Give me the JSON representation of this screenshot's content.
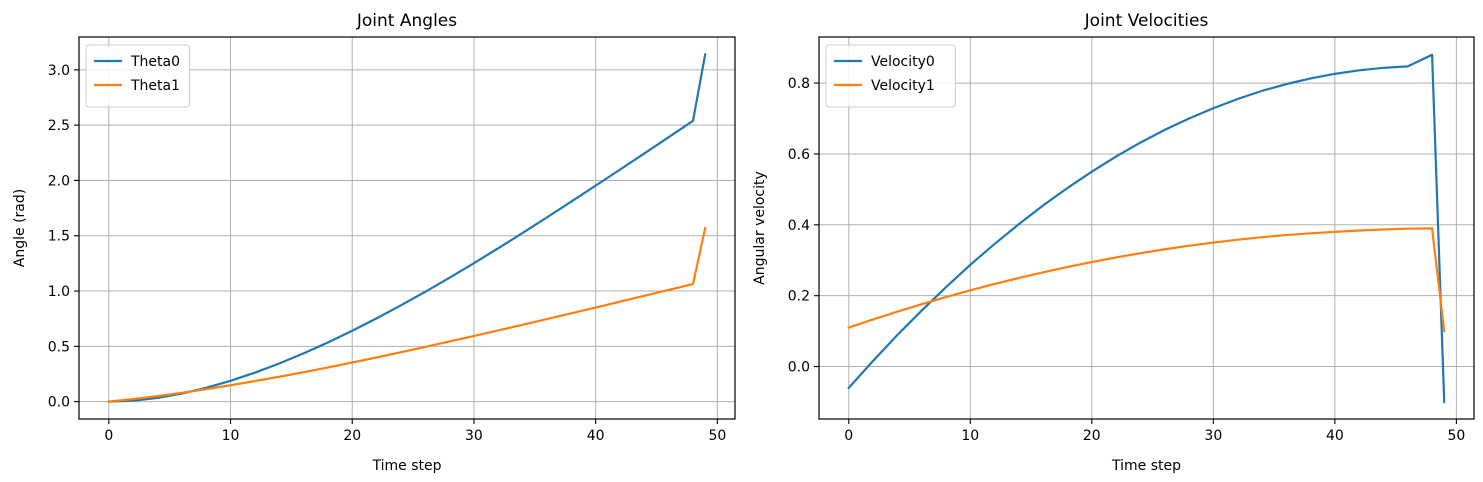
{
  "chart_data": [
    {
      "type": "line",
      "title": "Joint Angles",
      "xlabel": "Time step",
      "ylabel": "Angle (rad)",
      "xlim": [
        -2.45,
        51.45
      ],
      "ylim": [
        -0.157,
        3.297
      ],
      "xticks": [
        0,
        10,
        20,
        30,
        40,
        50
      ],
      "yticks": [
        0.0,
        0.5,
        1.0,
        1.5,
        2.0,
        2.5,
        3.0
      ],
      "xtick_labels": [
        "0",
        "10",
        "20",
        "30",
        "40",
        "50"
      ],
      "ytick_labels": [
        "0.0",
        "0.5",
        "1.0",
        "1.5",
        "2.0",
        "2.5",
        "3.0"
      ],
      "grid": true,
      "legend_position": "upper-left",
      "series": [
        {
          "name": "Theta0",
          "color": "#1f77b4",
          "x": [
            0,
            2,
            4,
            6,
            8,
            10,
            12,
            14,
            16,
            18,
            20,
            22,
            24,
            26,
            28,
            30,
            32,
            34,
            36,
            38,
            40,
            42,
            44,
            46,
            48,
            49
          ],
          "y": [
            0.0,
            0.009,
            0.034,
            0.073,
            0.125,
            0.188,
            0.262,
            0.345,
            0.436,
            0.535,
            0.641,
            0.753,
            0.871,
            0.993,
            1.121,
            1.252,
            1.387,
            1.525,
            1.666,
            1.809,
            1.953,
            2.098,
            2.244,
            2.391,
            2.539,
            3.14
          ]
        },
        {
          "name": "Theta1",
          "color": "#ff7f0e",
          "x": [
            0,
            2,
            4,
            6,
            8,
            10,
            12,
            14,
            16,
            18,
            20,
            22,
            24,
            26,
            28,
            30,
            32,
            34,
            36,
            38,
            40,
            42,
            44,
            46,
            48,
            49
          ],
          "y": [
            0.0,
            0.023,
            0.05,
            0.08,
            0.113,
            0.148,
            0.186,
            0.225,
            0.266,
            0.309,
            0.354,
            0.4,
            0.447,
            0.495,
            0.544,
            0.594,
            0.644,
            0.695,
            0.747,
            0.799,
            0.851,
            0.904,
            0.957,
            1.01,
            1.063,
            1.57
          ]
        }
      ]
    },
    {
      "type": "line",
      "title": "Joint Velocities",
      "xlabel": "Time step",
      "ylabel": "Angular velocity",
      "xlim": [
        -2.45,
        51.45
      ],
      "ylim": [
        -0.148,
        0.93
      ],
      "xticks": [
        0,
        10,
        20,
        30,
        40,
        50
      ],
      "yticks": [
        0.0,
        0.2,
        0.4,
        0.6,
        0.8
      ],
      "xtick_labels": [
        "0",
        "10",
        "20",
        "30",
        "40",
        "50"
      ],
      "ytick_labels": [
        "0.0",
        "0.2",
        "0.4",
        "0.6",
        "0.8"
      ],
      "grid": true,
      "legend_position": "upper-left",
      "series": [
        {
          "name": "Velocity0",
          "color": "#1f77b4",
          "x": [
            0,
            2,
            4,
            6,
            8,
            10,
            12,
            14,
            16,
            18,
            20,
            22,
            24,
            26,
            28,
            30,
            32,
            34,
            36,
            38,
            40,
            42,
            44,
            46,
            48,
            49
          ],
          "y": [
            -0.06,
            0.016,
            0.089,
            0.158,
            0.224,
            0.287,
            0.346,
            0.402,
            0.455,
            0.504,
            0.55,
            0.593,
            0.632,
            0.668,
            0.7,
            0.729,
            0.755,
            0.778,
            0.797,
            0.813,
            0.826,
            0.836,
            0.843,
            0.847,
            0.88,
            -0.1
          ]
        },
        {
          "name": "Velocity1",
          "color": "#ff7f0e",
          "x": [
            0,
            2,
            4,
            6,
            8,
            10,
            12,
            14,
            16,
            18,
            20,
            22,
            24,
            26,
            28,
            30,
            32,
            34,
            36,
            38,
            40,
            42,
            44,
            46,
            48,
            49
          ],
          "y": [
            0.11,
            0.133,
            0.155,
            0.176,
            0.196,
            0.215,
            0.233,
            0.25,
            0.266,
            0.281,
            0.295,
            0.308,
            0.32,
            0.331,
            0.341,
            0.35,
            0.358,
            0.365,
            0.371,
            0.376,
            0.38,
            0.384,
            0.387,
            0.389,
            0.39,
            0.1
          ]
        }
      ]
    }
  ]
}
